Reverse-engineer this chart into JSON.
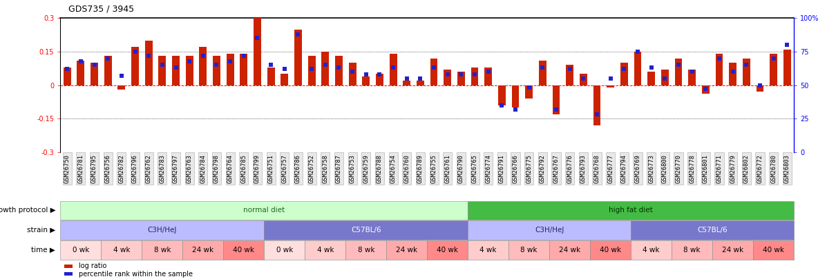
{
  "title": "GDS735 / 3945",
  "sample_ids": [
    "GSM26750",
    "GSM26781",
    "GSM26795",
    "GSM26756",
    "GSM26782",
    "GSM26796",
    "GSM26762",
    "GSM26783",
    "GSM26797",
    "GSM26763",
    "GSM26784",
    "GSM26798",
    "GSM26764",
    "GSM26785",
    "GSM26799",
    "GSM26751",
    "GSM26757",
    "GSM26786",
    "GSM26752",
    "GSM26758",
    "GSM26787",
    "GSM26753",
    "GSM26759",
    "GSM26788",
    "GSM26754",
    "GSM26760",
    "GSM26789",
    "GSM26755",
    "GSM26761",
    "GSM26790",
    "GSM26765",
    "GSM26774",
    "GSM26791",
    "GSM26766",
    "GSM26775",
    "GSM26792",
    "GSM26767",
    "GSM26776",
    "GSM26793",
    "GSM26768",
    "GSM26777",
    "GSM26794",
    "GSM26769",
    "GSM26773",
    "GSM26800",
    "GSM26770",
    "GSM26778",
    "GSM26801",
    "GSM26771",
    "GSM26779",
    "GSM26802",
    "GSM26772",
    "GSM26780",
    "GSM26803"
  ],
  "log_ratio": [
    0.08,
    0.11,
    0.1,
    0.13,
    -0.02,
    0.17,
    0.2,
    0.13,
    0.13,
    0.13,
    0.17,
    0.13,
    0.14,
    0.14,
    0.3,
    0.08,
    0.05,
    0.25,
    0.13,
    0.15,
    0.13,
    0.1,
    0.04,
    0.05,
    0.14,
    0.02,
    0.02,
    0.12,
    0.07,
    0.06,
    0.08,
    0.08,
    -0.09,
    -0.1,
    -0.06,
    0.11,
    -0.13,
    0.09,
    0.05,
    -0.18,
    -0.01,
    0.1,
    0.15,
    0.06,
    0.07,
    0.12,
    0.07,
    -0.04,
    0.14,
    0.1,
    0.12,
    -0.03,
    0.14,
    0.16
  ],
  "percentile_rank": [
    62,
    68,
    65,
    70,
    57,
    75,
    72,
    65,
    63,
    68,
    72,
    65,
    68,
    72,
    85,
    65,
    62,
    88,
    62,
    65,
    63,
    60,
    58,
    58,
    63,
    55,
    55,
    63,
    58,
    58,
    58,
    60,
    35,
    32,
    48,
    63,
    32,
    62,
    55,
    28,
    55,
    62,
    75,
    63,
    55,
    65,
    60,
    47,
    70,
    60,
    65,
    50,
    70,
    80
  ],
  "ylim_left": [
    -0.3,
    0.3
  ],
  "ylim_right": [
    0,
    100
  ],
  "yticks_left": [
    -0.3,
    -0.15,
    0.0,
    0.15,
    0.3
  ],
  "yticks_left_labels": [
    "-0.3",
    "-0.15",
    "0",
    "0.15",
    "0.3"
  ],
  "yticks_right": [
    0,
    25,
    50,
    75,
    100
  ],
  "yticks_right_labels": [
    "0",
    "25",
    "50",
    "75",
    "100%"
  ],
  "bar_color": "#cc2200",
  "square_color": "#2222cc",
  "bar_width": 0.55,
  "growth_protocol_groups": [
    {
      "label": "normal diet",
      "start": 0,
      "end": 30,
      "color": "#ccffcc",
      "text_color": "#226622"
    },
    {
      "label": "high fat diet",
      "start": 30,
      "end": 54,
      "color": "#44bb44",
      "text_color": "#003300"
    }
  ],
  "strain_groups": [
    {
      "label": "C3H/HeJ",
      "start": 0,
      "end": 15,
      "color": "#bbbbff",
      "text_color": "#222266"
    },
    {
      "label": "C57BL/6",
      "start": 15,
      "end": 30,
      "color": "#7777cc",
      "text_color": "#ffffff"
    },
    {
      "label": "C3H/HeJ",
      "start": 30,
      "end": 42,
      "color": "#bbbbff",
      "text_color": "#222266"
    },
    {
      "label": "C57BL/6",
      "start": 42,
      "end": 54,
      "color": "#7777cc",
      "text_color": "#ffffff"
    }
  ],
  "time_groups": [
    {
      "label": "0 wk",
      "start": 0,
      "end": 3,
      "color": "#ffdede"
    },
    {
      "label": "4 wk",
      "start": 3,
      "end": 6,
      "color": "#ffcccc"
    },
    {
      "label": "8 wk",
      "start": 6,
      "end": 9,
      "color": "#ffbbbb"
    },
    {
      "label": "24 wk",
      "start": 9,
      "end": 12,
      "color": "#ffaaaa"
    },
    {
      "label": "40 wk",
      "start": 12,
      "end": 15,
      "color": "#ff8888"
    },
    {
      "label": "0 wk",
      "start": 15,
      "end": 18,
      "color": "#ffdede"
    },
    {
      "label": "4 wk",
      "start": 18,
      "end": 21,
      "color": "#ffcccc"
    },
    {
      "label": "8 wk",
      "start": 21,
      "end": 24,
      "color": "#ffbbbb"
    },
    {
      "label": "24 wk",
      "start": 24,
      "end": 27,
      "color": "#ffaaaa"
    },
    {
      "label": "40 wk",
      "start": 27,
      "end": 30,
      "color": "#ff8888"
    },
    {
      "label": "4 wk",
      "start": 30,
      "end": 33,
      "color": "#ffcccc"
    },
    {
      "label": "8 wk",
      "start": 33,
      "end": 36,
      "color": "#ffbbbb"
    },
    {
      "label": "24 wk",
      "start": 36,
      "end": 39,
      "color": "#ffaaaa"
    },
    {
      "label": "40 wk",
      "start": 39,
      "end": 42,
      "color": "#ff8888"
    },
    {
      "label": "4 wk",
      "start": 42,
      "end": 45,
      "color": "#ffcccc"
    },
    {
      "label": "8 wk",
      "start": 45,
      "end": 48,
      "color": "#ffbbbb"
    },
    {
      "label": "24 wk",
      "start": 48,
      "end": 51,
      "color": "#ffaaaa"
    },
    {
      "label": "40 wk",
      "start": 51,
      "end": 54,
      "color": "#ff8888"
    }
  ],
  "legend_items": [
    {
      "label": "log ratio",
      "color": "#cc2200",
      "marker": "s"
    },
    {
      "label": "percentile rank within the sample",
      "color": "#2222cc",
      "marker": "s"
    }
  ],
  "title_fontsize": 9,
  "tick_fontsize": 7,
  "sample_label_fontsize": 6.2,
  "annot_fontsize": 7.5,
  "row_label_fontsize": 7.5
}
